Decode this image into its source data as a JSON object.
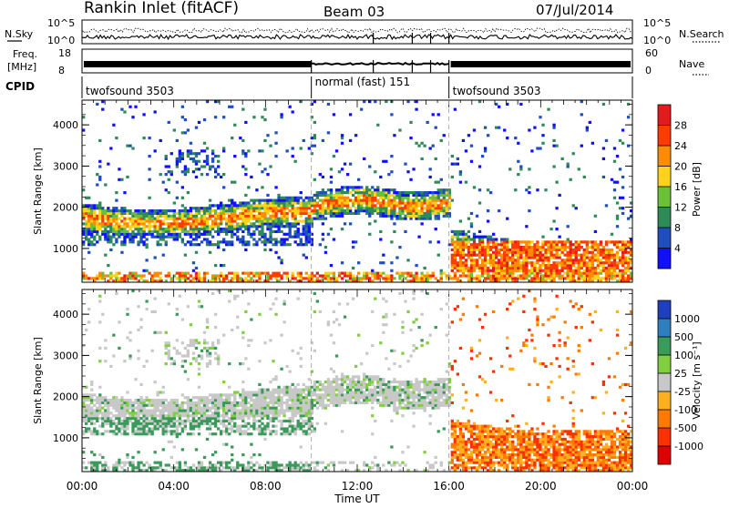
{
  "header": {
    "station": "Rankin Inlet (fitACF)",
    "beam": "Beam 03",
    "date": "07/Jul/2014"
  },
  "top_panels": {
    "nsky_label": "N.Sky",
    "nsky_ticks": [
      "10^5",
      "10^0"
    ],
    "nsearch_label": "N.Search",
    "nsearch_ticks": [
      "10^5",
      "10^0"
    ],
    "freq_label_1": "Freq.",
    "freq_label_2": "[MHz]",
    "freq_ticks": [
      "18",
      "8"
    ],
    "nave_label": "Nave",
    "nave_ticks": [
      "60",
      "0"
    ],
    "cpid_label": "CPID",
    "cpid_segments": [
      {
        "name": "twofsound 3503",
        "start_h": 0,
        "end_h": 10
      },
      {
        "name": "normal (fast) 151",
        "start_h": 10,
        "end_h": 16
      },
      {
        "name": "twofsound 3503",
        "start_h": 16,
        "end_h": 24
      }
    ]
  },
  "chart_data": [
    {
      "type": "heatmap",
      "name": "power",
      "ylabel": "Slant Range [km]",
      "yticks": [
        1000,
        2000,
        3000,
        4000
      ],
      "ylim": [
        180,
        4600
      ],
      "xlim_hours": [
        0,
        24
      ],
      "colorbar_label": "Power [dB]",
      "colorbar_ticks": [
        "28",
        "24",
        "20",
        "16",
        "12",
        "8",
        "4"
      ],
      "colorbar_colors": [
        "#e41a1c",
        "#ff3b00",
        "#ff8c00",
        "#ffd21a",
        "#6bbf3a",
        "#2e8b57",
        "#1f4fbf",
        "#1010ff"
      ]
    },
    {
      "type": "heatmap",
      "name": "velocity",
      "ylabel": "Slant Range [km]",
      "yticks": [
        1000,
        2000,
        3000,
        4000
      ],
      "ylim": [
        180,
        4600
      ],
      "xlim_hours": [
        0,
        24
      ],
      "colorbar_label": "Velocity [m s⁻¹]",
      "colorbar_ticks": [
        "1000",
        "500",
        "100",
        "25",
        "-25",
        "-100",
        "-500",
        "-1000"
      ],
      "colorbar_colors": [
        "#1f3fbf",
        "#2f7fbf",
        "#3a9a5a",
        "#7fcf3f",
        "#c8c8c8",
        "#ffb020",
        "#ff7a00",
        "#ff3000",
        "#e00000"
      ]
    }
  ],
  "xaxis": {
    "ticks": [
      "00:00",
      "04:00",
      "08:00",
      "12:00",
      "16:00",
      "20:00",
      "00:00"
    ],
    "label": "Time UT"
  }
}
